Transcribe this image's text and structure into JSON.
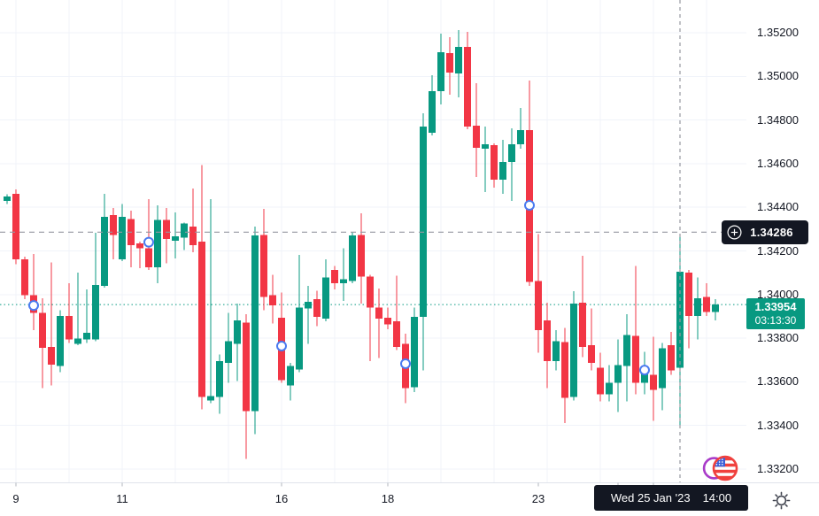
{
  "colors": {
    "up": "#089981",
    "down": "#F23645",
    "grid": "#F0F3FA",
    "axis_text": "#131722",
    "crosshair": "#9598A1",
    "label_bg": "#131722",
    "marker": "#4A7BF0",
    "current_line": "#089981",
    "separator": "#E0E3EB",
    "tick": "#B2B5BE",
    "gear": "#434651",
    "logo_ring_left": "#A93BC9",
    "logo_ring_right": "#F0413E",
    "flag_blue": "#3C5DD6",
    "flag_red": "#F0413E"
  },
  "price_axis": {
    "labels": [
      "1.35200",
      "1.35000",
      "1.34800",
      "1.34600",
      "1.34400",
      "1.34200",
      "1.34000",
      "1.33800",
      "1.33600",
      "1.33400",
      "1.33200"
    ]
  },
  "time_axis": {
    "ticks": [
      {
        "label": "9",
        "index": 1
      },
      {
        "label": "11",
        "index": 13
      },
      {
        "label": "16",
        "index": 31
      },
      {
        "label": "18",
        "index": 43
      },
      {
        "label": "23",
        "index": 60
      }
    ],
    "minor_tick_indices": [
      1,
      13,
      31,
      43,
      60,
      69,
      73
    ]
  },
  "crosshair": {
    "price_label": "1.34286",
    "price": 1.34286,
    "candle_index": 76,
    "date": "Wed 25 Jan '23",
    "time": "14:00"
  },
  "current_price": {
    "label": "1.33954",
    "value": 1.33954,
    "countdown": "03:13:30"
  },
  "chart_data": {
    "type": "candlestick",
    "price_range": [
      1.332,
      1.352
    ],
    "grid_prices": [
      1.352,
      1.35,
      1.348,
      1.346,
      1.344,
      1.342,
      1.34,
      1.338,
      1.336,
      1.334,
      1.332
    ],
    "vgrid_indices": [
      1,
      7,
      13,
      19,
      25,
      31,
      37,
      43,
      49,
      55,
      61,
      67,
      73,
      79
    ],
    "candles": [
      [
        1.3443,
        1.3446,
        1.34415,
        1.3445
      ],
      [
        1.34461,
        1.34481,
        1.3414,
        1.34161
      ],
      [
        1.34161,
        1.34173,
        1.33978,
        1.33998
      ],
      [
        1.33998,
        1.34185,
        1.33836,
        1.33917
      ],
      [
        1.33917,
        1.33982,
        1.33572,
        1.33755
      ],
      [
        1.33759,
        1.34148,
        1.33584,
        1.33678
      ],
      [
        1.33673,
        1.33929,
        1.33645,
        1.33901
      ],
      [
        1.33901,
        1.34051,
        1.33779,
        1.33795
      ],
      [
        1.33775,
        1.341,
        1.33767,
        1.33799
      ],
      [
        1.33795,
        1.34023,
        1.33779,
        1.33824
      ],
      [
        1.33795,
        1.34283,
        1.33787,
        1.34043
      ],
      [
        1.34039,
        1.34461,
        1.34031,
        1.34356
      ],
      [
        1.34364,
        1.34396,
        1.34161,
        1.34274
      ],
      [
        1.34161,
        1.34416,
        1.34153,
        1.34356
      ],
      [
        1.34347,
        1.34384,
        1.34124,
        1.34226
      ],
      [
        1.34234,
        1.34242,
        1.3412,
        1.34213
      ],
      [
        1.34213,
        1.34437,
        1.34112,
        1.34124
      ],
      [
        1.34124,
        1.34408,
        1.34051,
        1.34343
      ],
      [
        1.34343,
        1.34396,
        1.34144,
        1.34254
      ],
      [
        1.34246,
        1.34376,
        1.34165,
        1.34266
      ],
      [
        1.3426,
        1.3433,
        1.34205,
        1.34325
      ],
      [
        1.34311,
        1.34485,
        1.34193,
        1.34226
      ],
      [
        1.34242,
        1.34594,
        1.33474,
        1.33531
      ],
      [
        1.33515,
        1.34437,
        1.33502,
        1.33535
      ],
      [
        1.33531,
        1.33726,
        1.33454,
        1.33694
      ],
      [
        1.33686,
        1.33917,
        1.33596,
        1.33787
      ],
      [
        1.33775,
        1.33958,
        1.33604,
        1.33881
      ],
      [
        1.33872,
        1.33909,
        1.33247,
        1.33466
      ],
      [
        1.33466,
        1.34311,
        1.33361,
        1.3427
      ],
      [
        1.34274,
        1.34392,
        1.33929,
        1.3399
      ],
      [
        1.33998,
        1.34091,
        1.33868,
        1.3395
      ],
      [
        1.33893,
        1.3401,
        1.33596,
        1.33608
      ],
      [
        1.33584,
        1.33686,
        1.33515,
        1.33673
      ],
      [
        1.33657,
        1.34181,
        1.33645,
        1.33941
      ],
      [
        1.33937,
        1.34039,
        1.33775,
        1.33966
      ],
      [
        1.33978,
        1.34018,
        1.33856,
        1.33897
      ],
      [
        1.33889,
        1.34161,
        1.33877,
        1.34079
      ],
      [
        1.34112,
        1.34132,
        1.34023,
        1.34051
      ],
      [
        1.34051,
        1.34213,
        1.3397,
        1.34071
      ],
      [
        1.34063,
        1.34287,
        1.34051,
        1.3427
      ],
      [
        1.34274,
        1.34372,
        1.33958,
        1.34083
      ],
      [
        1.34083,
        1.34091,
        1.33694,
        1.33941
      ],
      [
        1.33941,
        1.34027,
        1.3371,
        1.33889
      ],
      [
        1.33893,
        1.33941,
        1.3384,
        1.33864
      ],
      [
        1.33877,
        1.34087,
        1.33746,
        1.33759
      ],
      [
        1.33775,
        1.3382,
        1.33502,
        1.33572
      ],
      [
        1.33576,
        1.33941,
        1.33552,
        1.33897
      ],
      [
        1.33897,
        1.34831,
        1.33653,
        1.3477
      ],
      [
        1.34741,
        1.35005,
        1.34729,
        1.34932
      ],
      [
        1.34932,
        1.35196,
        1.34871,
        1.35111
      ],
      [
        1.35107,
        1.3518,
        1.34916,
        1.35017
      ],
      [
        1.35013,
        1.35212,
        1.34904,
        1.35135
      ],
      [
        1.35135,
        1.35204,
        1.34757,
        1.3477
      ],
      [
        1.34774,
        1.34969,
        1.34538,
        1.34672
      ],
      [
        1.34668,
        1.3477,
        1.34469,
        1.34688
      ],
      [
        1.34684,
        1.34692,
        1.3449,
        1.34526
      ],
      [
        1.34526,
        1.34709,
        1.34461,
        1.34607
      ],
      [
        1.34607,
        1.34761,
        1.34429,
        1.34688
      ],
      [
        1.34688,
        1.34855,
        1.34668,
        1.34753
      ],
      [
        1.34753,
        1.34981,
        1.34039,
        1.34059
      ],
      [
        1.34063,
        1.34278,
        1.33734,
        1.33836
      ],
      [
        1.33881,
        1.33962,
        1.33572,
        1.33694
      ],
      [
        1.33694,
        1.33836,
        1.33653,
        1.33787
      ],
      [
        1.33783,
        1.33848,
        1.3341,
        1.33527
      ],
      [
        1.33531,
        1.34015,
        1.33515,
        1.33958
      ],
      [
        1.33962,
        1.34177,
        1.33714,
        1.33759
      ],
      [
        1.33767,
        1.33937,
        1.33653,
        1.33686
      ],
      [
        1.33665,
        1.33734,
        1.33511,
        1.33543
      ],
      [
        1.33543,
        1.33677,
        1.33511,
        1.33596
      ],
      [
        1.33596,
        1.33795,
        1.33462,
        1.33677
      ],
      [
        1.33673,
        1.33909,
        1.33511,
        1.33815
      ],
      [
        1.33811,
        1.34132,
        1.33543,
        1.33596
      ],
      [
        1.33596,
        1.33738,
        1.33543,
        1.33673
      ],
      [
        1.33633,
        1.33807,
        1.33421,
        1.33563
      ],
      [
        1.33572,
        1.33779,
        1.3347,
        1.33754
      ],
      [
        1.33767,
        1.33828,
        1.33633,
        1.33653
      ],
      [
        1.33665,
        1.34266,
        1.33393,
        1.34104
      ],
      [
        1.341,
        1.34112,
        1.33754,
        1.33901
      ],
      [
        1.33901,
        1.34079,
        1.33795,
        1.33982
      ],
      [
        1.3399,
        1.34051,
        1.33901,
        1.33921
      ],
      [
        1.33921,
        1.33978,
        1.33881,
        1.33954
      ]
    ],
    "markers": [
      {
        "index": 3,
        "price": 1.3395
      },
      {
        "index": 16,
        "price": 1.3424
      },
      {
        "index": 31,
        "price": 1.33764
      },
      {
        "index": 45,
        "price": 1.33683
      },
      {
        "index": 59,
        "price": 1.34409
      },
      {
        "index": 72,
        "price": 1.33654
      }
    ]
  }
}
